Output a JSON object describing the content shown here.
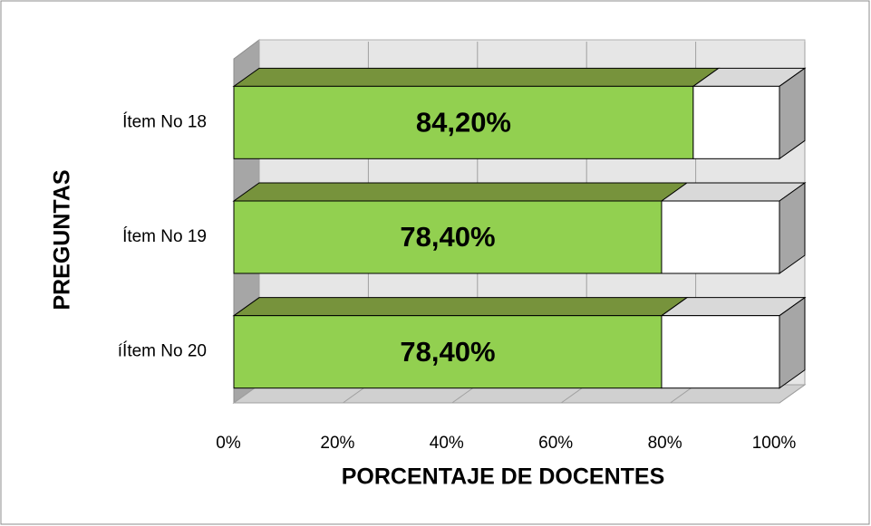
{
  "chart_data": {
    "type": "bar3d_stacked_horizontal",
    "x_label": "PORCENTAJE DE DOCENTES",
    "y_label": "PREGUNTAS",
    "categories": [
      "Ítem No 18",
      "Ítem No 19",
      "íÍtem No 20"
    ],
    "series": [
      {
        "color": "#92d050",
        "top_color": "#77933c",
        "values": [
          84.2,
          78.4,
          78.4
        ],
        "value_labels": [
          "84,20%",
          "78,40%",
          "78,40%"
        ]
      },
      {
        "color": "#ffffff",
        "top_color": "#d9d9d9",
        "values": [
          15.8,
          21.6,
          21.6
        ]
      }
    ],
    "xlim": [
      0,
      100
    ],
    "xticks": [
      {
        "value": 0,
        "label": "0%"
      },
      {
        "value": 20,
        "label": "20%"
      },
      {
        "value": 40,
        "label": "40%"
      },
      {
        "value": 60,
        "label": "60%"
      },
      {
        "value": 80,
        "label": "80%"
      },
      {
        "value": 100,
        "label": "100%"
      }
    ],
    "grid": true
  }
}
